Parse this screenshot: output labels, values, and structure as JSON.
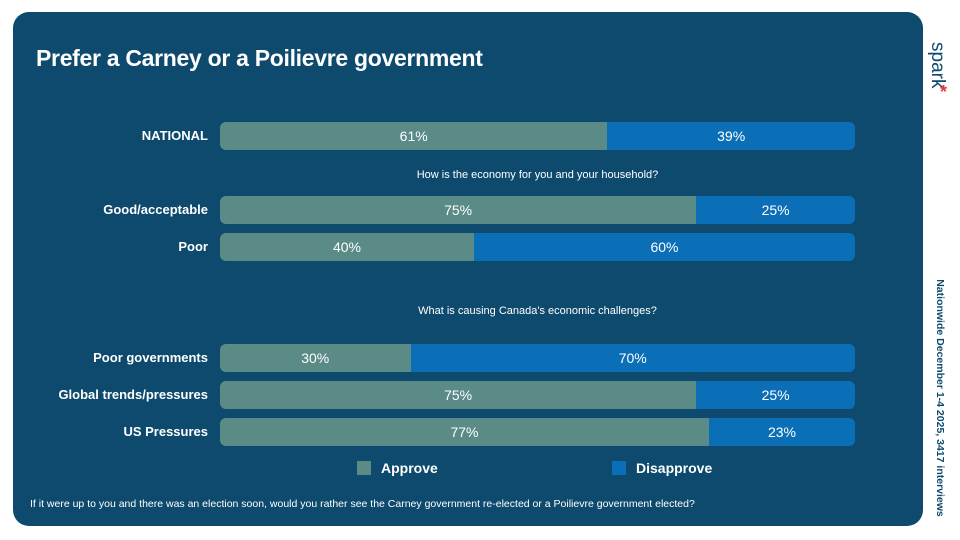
{
  "title": "Prefer a Carney or a Poilievre government",
  "brand": "spark",
  "side_note": "Nationwide December 1-4 2025, 3417 interviews",
  "footnote": "If it were up to you and there was an election soon, would you rather see the Carney government re-elected or a Poilievre government elected?",
  "questions": {
    "q1": "How is the economy for you and your household?",
    "q2": "What is causing Canada's economic challenges?"
  },
  "legend": {
    "approve": "Approve",
    "disapprove": "Disapprove"
  },
  "colors": {
    "approve": "#5a8b86",
    "disapprove": "#0b6fb8",
    "panel": "#0d4a6e",
    "brand_star": "#e23a3a"
  },
  "chart_data": {
    "type": "bar",
    "orientation": "horizontal",
    "stacked": true,
    "title": "Prefer a Carney or a Poilievre government",
    "categories": [
      "NATIONAL",
      "Good/acceptable",
      "Poor",
      "Poor governments",
      "Global trends/pressures",
      "US Pressures"
    ],
    "series": [
      {
        "name": "Approve",
        "values": [
          61,
          75,
          40,
          30,
          75,
          77
        ]
      },
      {
        "name": "Disapprove",
        "values": [
          39,
          25,
          60,
          70,
          25,
          23
        ]
      }
    ],
    "value_labels": {
      "approve": [
        "61%",
        "75%",
        "40%",
        "30%",
        "75%",
        "77%"
      ],
      "disapprove": [
        "39%",
        "25%",
        "60%",
        "70%",
        "25%",
        "23%"
      ]
    },
    "xlim": [
      0,
      100
    ],
    "legend_position": "bottom"
  }
}
